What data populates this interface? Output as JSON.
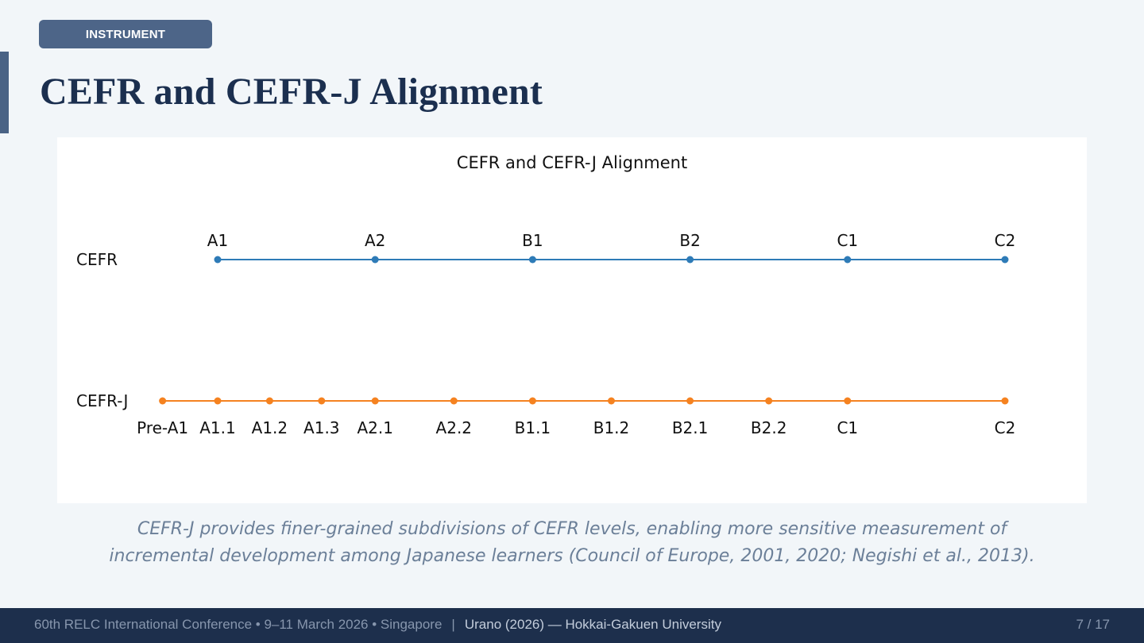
{
  "tag": "INSTRUMENT",
  "page_title": "CEFR and CEFR-J Alignment",
  "chart_data": {
    "type": "line",
    "title": "CEFR and CEFR-J Alignment",
    "xlabel": "",
    "ylabel": "",
    "grid": false,
    "legend": "none",
    "series": [
      {
        "name": "CEFR",
        "color": "#2e7bb7",
        "label_position": "above",
        "points": [
          {
            "label": "A1",
            "x": 1
          },
          {
            "label": "A2",
            "x": 2
          },
          {
            "label": "B1",
            "x": 3
          },
          {
            "label": "B2",
            "x": 4
          },
          {
            "label": "C1",
            "x": 5
          },
          {
            "label": "C2",
            "x": 6
          }
        ]
      },
      {
        "name": "CEFR-J",
        "color": "#f58220",
        "label_position": "below",
        "points": [
          {
            "label": "Pre-A1",
            "x": 0.65
          },
          {
            "label": "A1.1",
            "x": 1
          },
          {
            "label": "A1.2",
            "x": 1.33
          },
          {
            "label": "A1.3",
            "x": 1.66
          },
          {
            "label": "A2.1",
            "x": 2
          },
          {
            "label": "A2.2",
            "x": 2.5
          },
          {
            "label": "B1.1",
            "x": 3
          },
          {
            "label": "B1.2",
            "x": 3.5
          },
          {
            "label": "B2.1",
            "x": 4
          },
          {
            "label": "B2.2",
            "x": 4.5
          },
          {
            "label": "C1",
            "x": 5
          },
          {
            "label": "C2",
            "x": 6
          }
        ]
      }
    ]
  },
  "caption": {
    "line1": "CEFR-J provides finer-grained subdivisions of CEFR levels, enabling more sensitive measurement of",
    "line2": "incremental development among Japanese learners (Council of Europe, 2001, 2020; Negishi et al., 2013)."
  },
  "footer": {
    "conference": "60th RELC International Conference  •  9–11 March 2026  •  Singapore",
    "separator": "|",
    "author": "Urano (2026) — Hokkai-Gakuen University",
    "page": "7 / 17"
  }
}
